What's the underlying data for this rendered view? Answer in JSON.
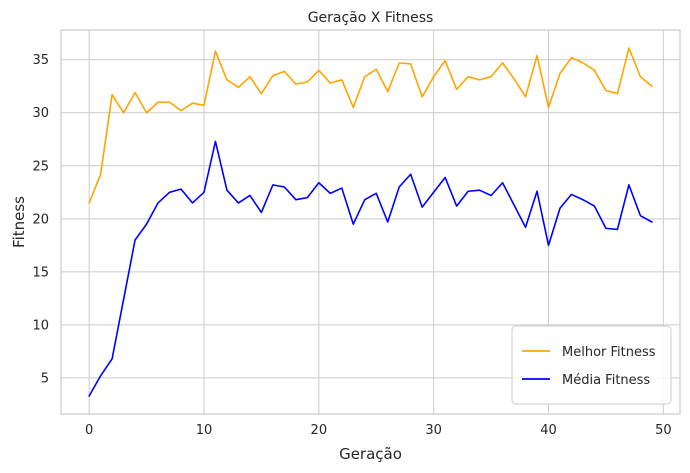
{
  "chart_data": {
    "type": "line",
    "title": "Geração X Fitness",
    "xlabel": "Geração",
    "ylabel": "Fitness",
    "xlim": [
      -2.45,
      51.45
    ],
    "ylim": [
      1.6,
      37.8
    ],
    "xticks": [
      0,
      10,
      20,
      30,
      40,
      50
    ],
    "yticks": [
      5,
      10,
      15,
      20,
      25,
      30,
      35
    ],
    "grid": true,
    "legend_position": "lower-right",
    "x": [
      0,
      1,
      2,
      3,
      4,
      5,
      6,
      7,
      8,
      9,
      10,
      11,
      12,
      13,
      14,
      15,
      16,
      17,
      18,
      19,
      20,
      21,
      22,
      23,
      24,
      25,
      26,
      27,
      28,
      29,
      30,
      31,
      32,
      33,
      34,
      35,
      36,
      37,
      38,
      39,
      40,
      41,
      42,
      43,
      44,
      45,
      46,
      47,
      48,
      49
    ],
    "series": [
      {
        "name": "Melhor Fitness",
        "color": "#FFA500",
        "values": [
          21.5,
          24.2,
          31.7,
          30.0,
          31.9,
          30.0,
          31.0,
          31.0,
          30.2,
          30.9,
          30.7,
          35.8,
          33.1,
          32.4,
          33.4,
          31.8,
          33.5,
          33.9,
          32.7,
          32.9,
          34.0,
          32.8,
          33.1,
          30.5,
          33.4,
          34.1,
          32.0,
          34.7,
          34.6,
          31.5,
          33.4,
          34.9,
          32.2,
          33.4,
          33.1,
          33.4,
          34.7,
          33.2,
          31.5,
          35.4,
          30.5,
          33.7,
          35.2,
          34.7,
          34.0,
          32.1,
          31.8,
          36.1,
          33.4,
          32.5
        ]
      },
      {
        "name": "Média Fitness",
        "color": "#0000FF",
        "values": [
          3.3,
          5.2,
          6.8,
          12.4,
          18.0,
          19.5,
          21.5,
          22.5,
          22.8,
          21.5,
          22.5,
          27.3,
          22.7,
          21.5,
          22.2,
          20.6,
          23.2,
          23.0,
          21.8,
          22.0,
          23.4,
          22.4,
          22.9,
          19.5,
          21.8,
          22.4,
          19.7,
          23.0,
          24.2,
          21.1,
          22.5,
          23.9,
          21.2,
          22.6,
          22.7,
          22.2,
          23.4,
          21.3,
          19.2,
          22.6,
          17.5,
          21.0,
          22.3,
          21.8,
          21.2,
          19.1,
          19.0,
          23.2,
          20.3,
          19.7
        ]
      }
    ]
  }
}
